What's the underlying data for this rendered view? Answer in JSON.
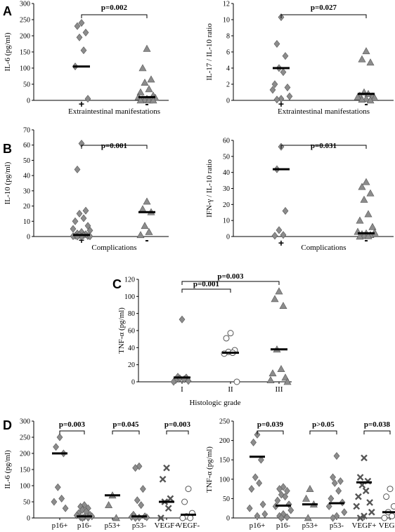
{
  "panel_letters": {
    "A": "A",
    "B": "B",
    "C": "C",
    "D": "D"
  },
  "chart_data": [
    {
      "id": "A1",
      "type": "scatter",
      "panel": "A",
      "ylabel": "IL-6 (pg/ml)",
      "xlabel": "Extraintestinal manifestations",
      "ylim": [
        0,
        300
      ],
      "yticks": [
        0,
        50,
        100,
        150,
        200,
        250,
        300
      ],
      "categories": [
        "+",
        "-"
      ],
      "markers": [
        "diamond",
        "triangle"
      ],
      "points": [
        [
          240,
          230,
          210,
          195,
          155,
          105,
          5
        ],
        [
          160,
          100,
          65,
          55,
          35,
          25,
          15,
          10,
          8,
          5,
          3,
          2,
          1,
          0,
          0,
          0
        ]
      ],
      "medians": [
        105,
        10
      ],
      "comparisons": [
        {
          "from": 0,
          "to": 1,
          "label": "p=0.002"
        }
      ]
    },
    {
      "id": "A2",
      "type": "scatter",
      "panel": "A",
      "ylabel": "IL-17 / IL-10 ratio",
      "xlabel": "Extraintestinal manifestations",
      "ylim": [
        0,
        12
      ],
      "yticks": [
        0,
        2,
        4,
        6,
        8,
        10,
        12
      ],
      "categories": [
        "+",
        "-"
      ],
      "markers": [
        "diamond",
        "triangle"
      ],
      "points": [
        [
          10.3,
          7,
          5.5,
          4,
          3.5,
          2,
          1.6,
          1.3,
          0.5,
          0.2,
          0.1
        ],
        [
          6.1,
          5.1,
          4.7,
          1,
          0.8,
          0.6,
          0.5,
          0.4,
          0.3,
          0.2,
          0.1,
          0
        ]
      ],
      "medians": [
        4,
        0.8
      ],
      "comparisons": [
        {
          "from": 0,
          "to": 1,
          "label": "p=0.027"
        }
      ]
    },
    {
      "id": "B1",
      "type": "scatter",
      "panel": "B",
      "ylabel": "IL-10 (pg/ml)",
      "xlabel": "Complications",
      "ylim": [
        0,
        70
      ],
      "yticks": [
        0,
        10,
        20,
        30,
        40,
        50,
        60,
        70
      ],
      "categories": [
        "+",
        "-"
      ],
      "markers": [
        "diamond",
        "triangle"
      ],
      "points": [
        [
          61,
          44,
          17,
          15,
          12,
          10,
          7,
          5,
          4,
          3,
          2,
          1.5,
          1,
          0.8,
          0.5,
          0.3,
          0.2,
          0.1,
          0,
          0
        ],
        [
          23,
          18,
          16,
          7,
          3,
          1
        ]
      ],
      "medians": [
        1,
        16
      ],
      "comparisons": [
        {
          "from": 0,
          "to": 1,
          "label": "p=0.001"
        }
      ]
    },
    {
      "id": "B2",
      "type": "scatter",
      "panel": "B",
      "ylabel": "IFN-γ / IL-10 ratio",
      "xlabel": "Complications",
      "ylim": [
        0,
        60
      ],
      "yticks": [
        0,
        10,
        20,
        30,
        40,
        50,
        60
      ],
      "categories": [
        "+",
        "-"
      ],
      "markers": [
        "diamond",
        "triangle"
      ],
      "points": [
        [
          56,
          42,
          16,
          4,
          1,
          0.5
        ],
        [
          34,
          31,
          27,
          23,
          14,
          10,
          6,
          3,
          2.5,
          2,
          1.5,
          1,
          0.5,
          0.3,
          0
        ]
      ],
      "medians": [
        42,
        2
      ],
      "comparisons": [
        {
          "from": 0,
          "to": 1,
          "label": "p=0.031"
        }
      ]
    },
    {
      "id": "C",
      "type": "scatter",
      "panel": "C",
      "ylabel": "TNF-α (pg/ml)",
      "xlabel": "Histologic grade",
      "ylim": [
        0,
        120
      ],
      "yticks": [
        0,
        20,
        40,
        60,
        80,
        100,
        120
      ],
      "categories": [
        "I",
        "II",
        "III"
      ],
      "markers": [
        "diamond",
        "circle",
        "triangle"
      ],
      "points": [
        [
          73,
          6,
          5,
          4,
          3,
          2,
          1,
          0
        ],
        [
          57,
          51,
          37,
          35,
          34,
          33,
          0
        ],
        [
          106,
          97,
          89,
          38,
          15,
          10,
          5,
          2,
          0
        ]
      ],
      "medians": [
        5,
        34,
        38
      ],
      "comparisons": [
        {
          "from": 0,
          "to": 1,
          "label": "p=0.001"
        },
        {
          "from": 0,
          "to": 2,
          "label": "p=0.003"
        }
      ]
    },
    {
      "id": "D1",
      "type": "scatter",
      "panel": "D",
      "ylabel": "IL-6 (pg/ml)",
      "xlabel": "",
      "ylim": [
        0,
        300
      ],
      "yticks": [
        0,
        50,
        100,
        150,
        200,
        250,
        300
      ],
      "categories": [
        "p16+",
        "p16-",
        "p53+",
        "p53-",
        "VEGF+",
        "VEGF-"
      ],
      "markers": [
        "diamond",
        "diamond",
        "triangle",
        "diamond",
        "x",
        "circle"
      ],
      "points": [
        [
          250,
          220,
          200,
          95,
          60,
          50,
          30
        ],
        [
          40,
          35,
          30,
          25,
          20,
          15,
          10,
          8,
          5,
          3,
          2,
          1,
          0
        ],
        [
          70,
          40,
          0
        ],
        [
          160,
          155,
          90,
          55,
          40,
          10,
          5,
          3,
          2,
          1,
          0
        ],
        [
          155,
          120,
          60,
          50,
          30,
          0
        ],
        [
          90,
          50,
          15,
          5,
          0,
          0
        ]
      ],
      "medians": [
        200,
        5,
        70,
        5,
        50,
        10
      ],
      "comparisons": [
        {
          "from": 0,
          "to": 1,
          "label": "p=0.003"
        },
        {
          "from": 2,
          "to": 3,
          "label": "p=0.045"
        },
        {
          "from": 4,
          "to": 5,
          "label": "p=0.003"
        }
      ]
    },
    {
      "id": "D2",
      "type": "scatter",
      "panel": "D",
      "ylabel": "TNF-α (pg/ml)",
      "xlabel": "",
      "ylim": [
        0,
        250
      ],
      "yticks": [
        0,
        50,
        100,
        150,
        200,
        250
      ],
      "categories": [
        "p16+",
        "p16-",
        "p53+",
        "p53-",
        "VEGF+",
        "VEGF-"
      ],
      "markers": [
        "diamond",
        "diamond",
        "triangle",
        "diamond",
        "x",
        "circle"
      ],
      "points": [
        [
          215,
          195,
          150,
          105,
          90,
          75,
          35,
          25,
          10,
          5
        ],
        [
          80,
          75,
          70,
          60,
          55,
          45,
          35,
          30,
          20,
          10,
          5,
          2,
          0
        ],
        [
          75,
          50,
          35,
          0
        ],
        [
          160,
          105,
          95,
          90,
          70,
          50,
          40,
          30,
          15,
          5,
          0
        ],
        [
          155,
          105,
          95,
          85,
          70,
          55,
          40,
          30,
          15,
          5,
          0
        ],
        [
          75,
          55,
          30,
          15,
          5,
          0
        ]
      ],
      "medians": [
        158,
        32,
        35,
        38,
        92,
        15
      ],
      "comparisons": [
        {
          "from": 0,
          "to": 1,
          "label": "p=0.039"
        },
        {
          "from": 2,
          "to": 3,
          "label": "p>0.05"
        },
        {
          "from": 4,
          "to": 5,
          "label": "p=0.038"
        }
      ]
    }
  ]
}
